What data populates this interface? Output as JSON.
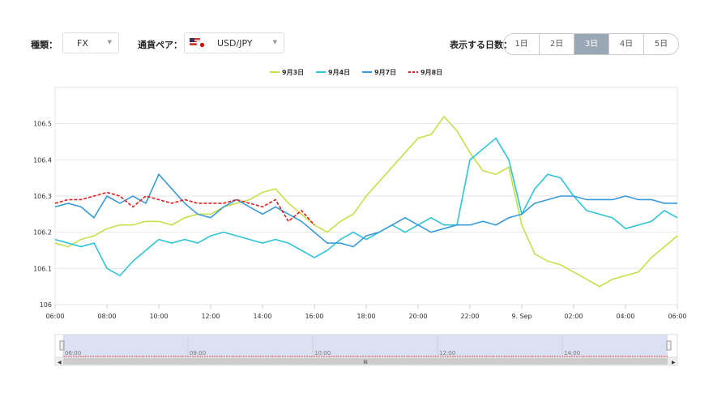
{
  "controls": {
    "type_label": "種類：",
    "type_value": "FX",
    "pair_label": "通貨ペア：",
    "pair_value": "USD/JPY",
    "days_label": "表示する日数：",
    "days": [
      "1日",
      "2日",
      "3日",
      "4日",
      "5日"
    ],
    "active_day": 2
  },
  "chart_data": {
    "type": "line",
    "legend": "top",
    "grid": true,
    "categories": [
      "06:00",
      null,
      null,
      null,
      "08:00",
      null,
      null,
      null,
      "10:00",
      null,
      null,
      null,
      "12:00",
      null,
      null,
      null,
      "14:00",
      null,
      null,
      null,
      "16:00",
      null,
      null,
      null,
      "18:00",
      null,
      null,
      null,
      "20:00",
      null,
      null,
      null,
      "22:00",
      null,
      null,
      null,
      "9. Sep",
      null,
      null,
      null,
      "02:00",
      null,
      null,
      null,
      "04:00",
      null,
      null,
      null,
      "06:00"
    ],
    "ylim": [
      106,
      106.6
    ],
    "yticks": [
      106,
      106.1,
      106.2,
      106.3,
      106.4,
      106.5
    ],
    "series": [
      {
        "name": "9月3日",
        "color": "#c5e04a",
        "values": [
          106.17,
          106.16,
          106.18,
          106.19,
          106.21,
          106.22,
          106.22,
          106.23,
          106.23,
          106.22,
          106.24,
          106.25,
          106.25,
          106.27,
          106.28,
          106.29,
          106.31,
          106.32,
          106.28,
          106.25,
          106.22,
          106.2,
          106.23,
          106.25,
          106.3,
          106.34,
          106.38,
          106.42,
          106.46,
          106.47,
          106.52,
          106.48,
          106.42,
          106.37,
          106.36,
          106.38,
          106.22,
          106.14,
          106.12,
          106.11,
          106.09,
          106.07,
          106.05,
          106.07,
          106.08,
          106.09,
          106.13,
          106.16,
          106.19
        ]
      },
      {
        "name": "9月4日",
        "color": "#2ec4d6",
        "values": [
          106.18,
          106.17,
          106.16,
          106.17,
          106.1,
          106.08,
          106.12,
          106.15,
          106.18,
          106.17,
          106.18,
          106.17,
          106.19,
          106.2,
          106.19,
          106.18,
          106.17,
          106.18,
          106.17,
          106.15,
          106.13,
          106.15,
          106.18,
          106.2,
          106.18,
          106.2,
          106.22,
          106.2,
          106.22,
          106.24,
          106.22,
          106.22,
          106.4,
          106.43,
          106.46,
          106.4,
          106.25,
          106.32,
          106.36,
          106.35,
          106.3,
          106.26,
          106.25,
          106.24,
          106.21,
          106.22,
          106.23,
          106.26,
          106.24
        ]
      },
      {
        "name": "9月7日",
        "color": "#3a9ad9",
        "values": [
          106.27,
          106.28,
          106.27,
          106.24,
          106.3,
          106.28,
          106.3,
          106.28,
          106.36,
          106.32,
          106.28,
          106.25,
          106.24,
          106.27,
          106.29,
          106.27,
          106.25,
          106.27,
          106.25,
          106.23,
          106.2,
          106.17,
          106.17,
          106.16,
          106.19,
          106.2,
          106.22,
          106.24,
          106.22,
          106.2,
          106.21,
          106.22,
          106.22,
          106.23,
          106.22,
          106.24,
          106.25,
          106.28,
          106.29,
          106.3,
          106.3,
          106.29,
          106.29,
          106.29,
          106.3,
          106.29,
          106.29,
          106.28,
          106.28
        ]
      },
      {
        "name": "9月8日",
        "color": "#e02020",
        "dash": true,
        "values": [
          106.28,
          106.29,
          106.29,
          106.3,
          106.31,
          106.3,
          106.27,
          106.3,
          106.29,
          106.28,
          106.29,
          106.28,
          106.28,
          106.28,
          106.29,
          106.28,
          106.27,
          106.29,
          106.23,
          106.26,
          106.22,
          null,
          null,
          null,
          null,
          null,
          null,
          null,
          null,
          null,
          null,
          null,
          null,
          null,
          null,
          null,
          null,
          null,
          null,
          null,
          null,
          null,
          null,
          null,
          null,
          null,
          null,
          null,
          null
        ]
      }
    ]
  },
  "navigator": {
    "labels": [
      "06:00",
      "08:00",
      "10:00",
      "12:00",
      "14:00"
    ]
  }
}
